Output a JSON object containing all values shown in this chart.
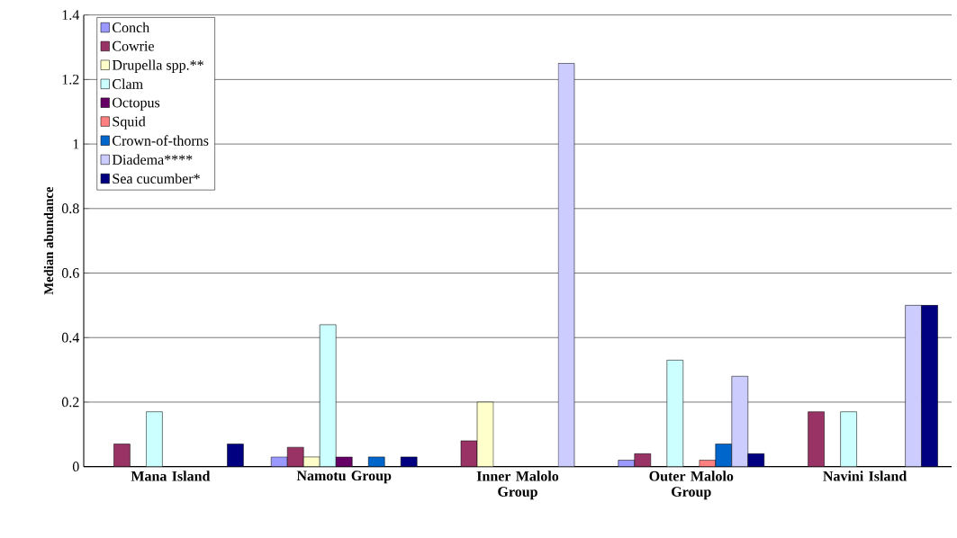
{
  "chart_data": {
    "type": "bar",
    "ylabel": "Median abundance",
    "categories": [
      "Mana Island",
      "Namotu Group",
      "Inner Malolo Group",
      "Outer Malolo Group",
      "Navini Island"
    ],
    "series": [
      {
        "name": "Conch",
        "color": "#9999ff",
        "values": [
          null,
          0.03,
          null,
          0.02,
          null
        ]
      },
      {
        "name": "Cowrie",
        "color": "#993366",
        "values": [
          0.07,
          0.06,
          0.08,
          0.04,
          0.17
        ]
      },
      {
        "name": "Drupella spp.**",
        "color": "#ffffcc",
        "values": [
          null,
          0.03,
          0.2,
          null,
          null
        ]
      },
      {
        "name": "Clam",
        "color": "#ccffff",
        "values": [
          0.17,
          0.44,
          null,
          0.33,
          0.17
        ]
      },
      {
        "name": "Octopus",
        "color": "#660066",
        "values": [
          null,
          0.03,
          null,
          null,
          null
        ]
      },
      {
        "name": "Squid",
        "color": "#ff8080",
        "values": [
          null,
          null,
          null,
          0.02,
          null
        ]
      },
      {
        "name": "Crown-of-thorns",
        "color": "#0066cc",
        "values": [
          null,
          0.03,
          null,
          0.07,
          null
        ]
      },
      {
        "name": "Diadema****",
        "color": "#ccccff",
        "values": [
          null,
          null,
          1.25,
          0.28,
          0.5
        ]
      },
      {
        "name": "Sea cucumber*",
        "color": "#000080",
        "values": [
          0.07,
          0.03,
          null,
          0.04,
          0.5
        ]
      }
    ],
    "ylim": [
      0,
      1.4
    ],
    "yticks": [
      0,
      0.2,
      0.4,
      0.6,
      0.8,
      1,
      1.2,
      1.4
    ],
    "grid": "y",
    "legend": "top left"
  }
}
